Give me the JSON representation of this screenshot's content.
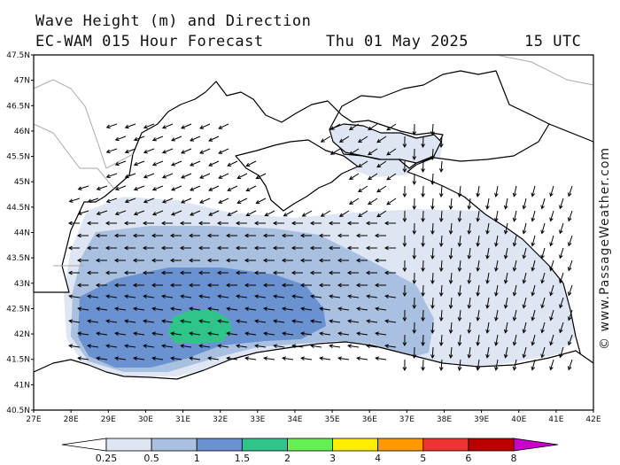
{
  "header": {
    "title": "Wave Height (m) and Direction",
    "model": "EC-WAM 015 Hour Forecast",
    "date": "Thu 01 May 2025",
    "utc": "15 UTC"
  },
  "credit": "© www.PassageWeather.com",
  "axes": {
    "lon_labels": [
      "27E",
      "28E",
      "29E",
      "30E",
      "31E",
      "32E",
      "33E",
      "34E",
      "35E",
      "36E",
      "37E",
      "38E",
      "39E",
      "40E",
      "41E",
      "42E"
    ],
    "lat_labels": [
      "47.5N",
      "47N",
      "46.5N",
      "46N",
      "45.5N",
      "45N",
      "44.5N",
      "44N",
      "43.5N",
      "43N",
      "42.5N",
      "42N",
      "41.5N",
      "41N",
      "40.5N"
    ],
    "lon_range": [
      27,
      42
    ],
    "lat_range": [
      40.5,
      47.5
    ]
  },
  "colorbar": {
    "labels": [
      "0.25",
      "0.5",
      "1",
      "1.5",
      "2",
      "3",
      "4",
      "5",
      "6",
      "8"
    ],
    "colors": [
      "#ffffff",
      "#dfe6f3",
      "#a9c0e0",
      "#6b92d0",
      "#2ec48a",
      "#66ee55",
      "#ffee00",
      "#ff9900",
      "#ee3333",
      "#bb0000",
      "#cc00cc"
    ]
  },
  "colors": {
    "land": "#ffffff",
    "coast": "#000000",
    "border": "#aaaaaa",
    "arrow": "#000000"
  }
}
